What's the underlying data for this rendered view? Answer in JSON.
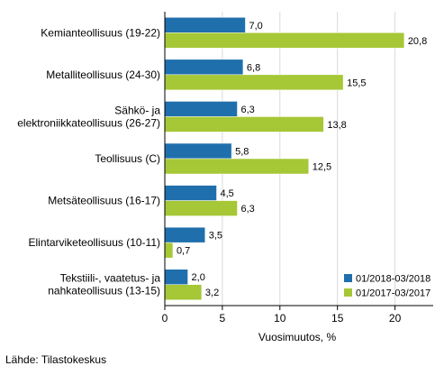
{
  "chart_data": {
    "type": "bar",
    "orientation": "horizontal",
    "categories": [
      [
        "Kemianteollisuus (19-22)"
      ],
      [
        "Metalliteollisuus (24-30)"
      ],
      [
        "Sähkö- ja",
        "elektroniikkateollisuus (26-27)"
      ],
      [
        "Teollisuus (C)"
      ],
      [
        "Metsäteollisuus (16-17)"
      ],
      [
        "Elintarviketeollisuus (10-11)"
      ],
      [
        "Tekstiili-, vaatetus- ja",
        "nahkateollisuus (13-15)"
      ]
    ],
    "series": [
      {
        "name": "01/2018-03/2018",
        "color": "#1f6fad",
        "values": [
          7.0,
          6.8,
          6.3,
          5.8,
          4.5,
          3.5,
          2.0
        ],
        "labels": [
          "7,0",
          "6,8",
          "6,3",
          "5,8",
          "4,5",
          "3,5",
          "2,0"
        ]
      },
      {
        "name": "01/2017-03/2017",
        "color": "#a6c736",
        "values": [
          20.8,
          15.5,
          13.8,
          12.5,
          6.3,
          0.7,
          3.2
        ],
        "labels": [
          "20,8",
          "15,5",
          "13,8",
          "12,5",
          "6,3",
          "0,7",
          "3,2"
        ]
      }
    ],
    "xlim": [
      0,
      23
    ],
    "xticks": [
      0,
      5,
      10,
      15,
      20
    ],
    "xlabel": "Vuosimuutos, %",
    "legend_position": "bottom-right",
    "grid": true,
    "grid_color": "#d9d9d9"
  },
  "source": "Lähde: Tilastokeskus"
}
